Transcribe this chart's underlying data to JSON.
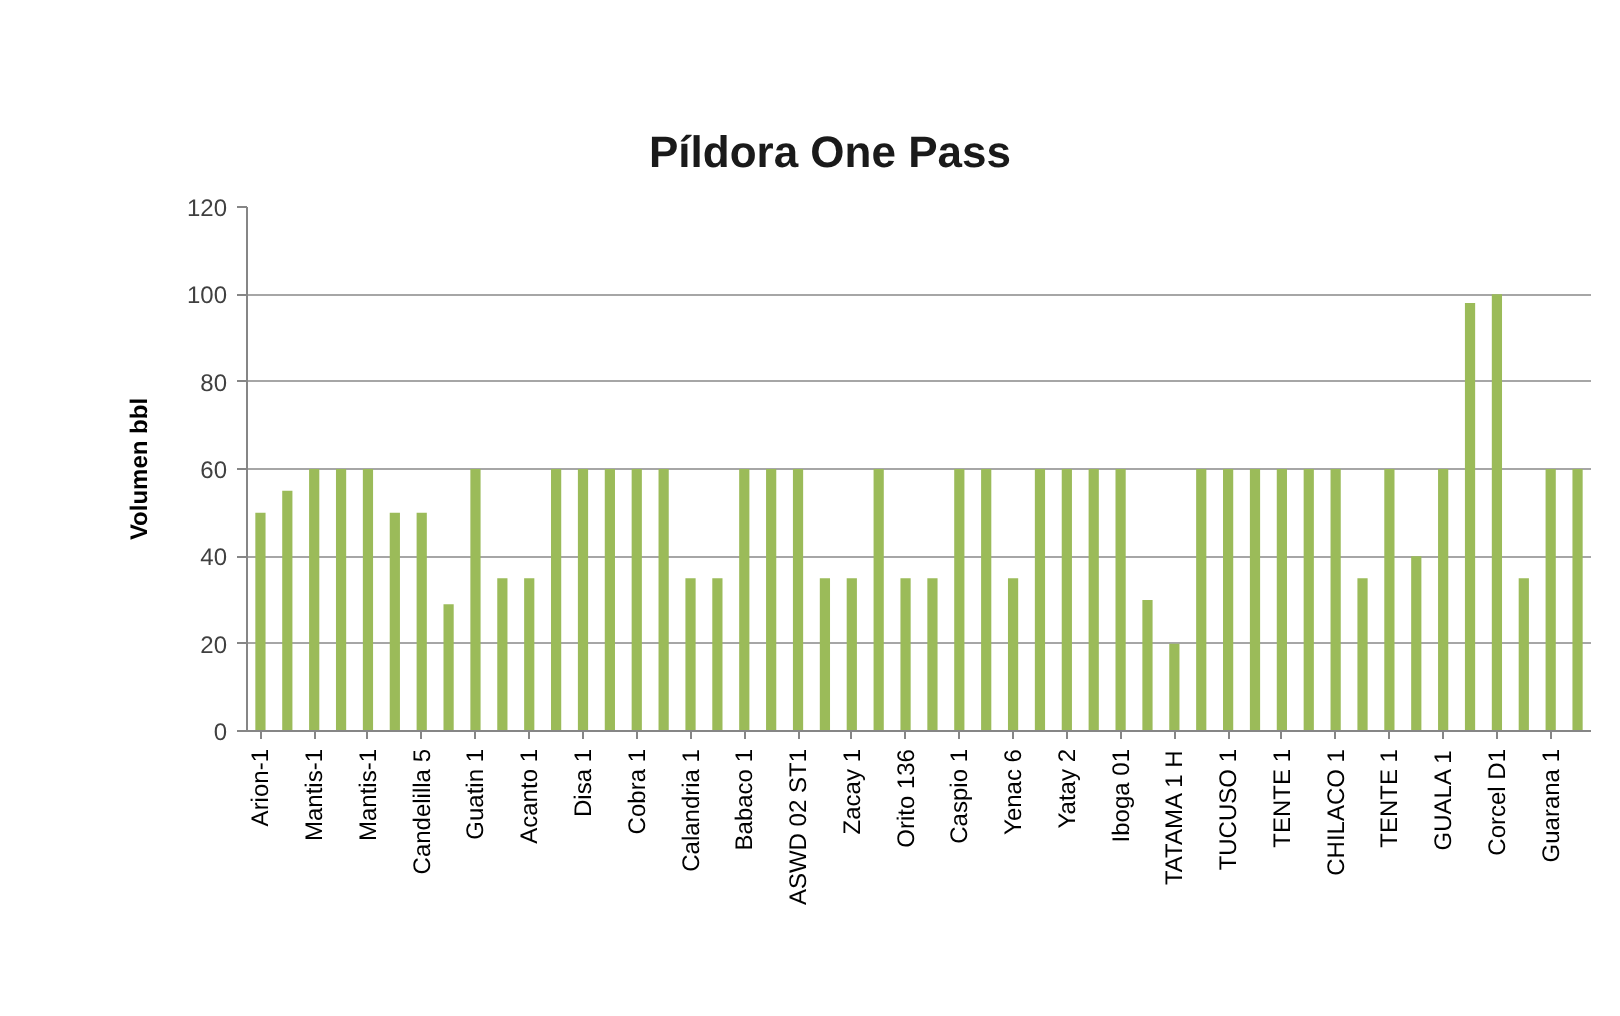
{
  "chart_data": {
    "type": "bar",
    "title": "Píldora One Pass",
    "ylabel": "Volumen bbl",
    "categories": [
      "Arion-1",
      null,
      "Mantis-1",
      null,
      "Mantis-1",
      null,
      "Candelilla 5",
      null,
      "Guatin 1",
      null,
      "Acanto 1",
      null,
      "Disa 1",
      null,
      "Cobra 1",
      null,
      "Calandria 1",
      null,
      "Babaco 1",
      null,
      "ASWD 02 ST1",
      null,
      "Zacay 1",
      null,
      "Orito 136",
      null,
      "Caspio 1",
      null,
      "Yenac 6",
      null,
      "Yatay 2",
      null,
      "Iboga 01",
      null,
      "TATAMA 1 H",
      null,
      "TUCUSO 1",
      null,
      "TENTE 1",
      null,
      "CHILACO 1",
      null,
      "TENTE 1",
      null,
      "GUALA 1",
      null,
      "Corcel D1",
      null,
      "Guarana 1",
      null
    ],
    "values": [
      50,
      55,
      60,
      60,
      60,
      50,
      50,
      29,
      60,
      35,
      35,
      60,
      60,
      60,
      60,
      60,
      35,
      35,
      60,
      60,
      60,
      35,
      35,
      60,
      35,
      35,
      60,
      60,
      35,
      60,
      60,
      60,
      60,
      30,
      20,
      60,
      60,
      60,
      60,
      60,
      60,
      35,
      60,
      40,
      60,
      98,
      100,
      35,
      60,
      60
    ],
    "color": "#9bbb59",
    "ylim": [
      0,
      120
    ],
    "yticks": [
      0,
      20,
      40,
      60,
      80,
      100,
      120
    ],
    "grid": "y"
  }
}
